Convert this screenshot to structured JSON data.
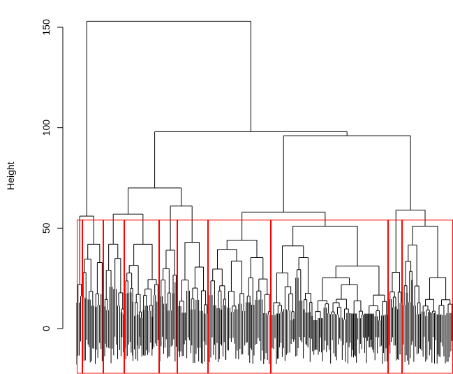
{
  "chart_data": {
    "type": "dendrogram",
    "ylabel": "Height",
    "ylim": [
      -22,
      160
    ],
    "yticks": [
      0,
      50,
      100,
      150
    ],
    "cut_height": 54,
    "clusters_at_cut": 10,
    "merges": [
      {
        "name": "root",
        "height": 153
      },
      {
        "name": "main-right",
        "height": 98
      },
      {
        "name": "left-of-main-right",
        "height": 70
      },
      {
        "name": "right-of-main-right",
        "height": 96
      },
      {
        "name": "sub-left-a",
        "height": 57
      },
      {
        "name": "sub-left-b",
        "height": 61
      },
      {
        "name": "sub-right-a",
        "height": 58
      },
      {
        "name": "sub-right-b",
        "height": 59
      },
      {
        "name": "leftmost-branch",
        "height": 56
      }
    ],
    "colors": {
      "branches": "#000000",
      "cut_boxes": "#ff0000"
    }
  }
}
